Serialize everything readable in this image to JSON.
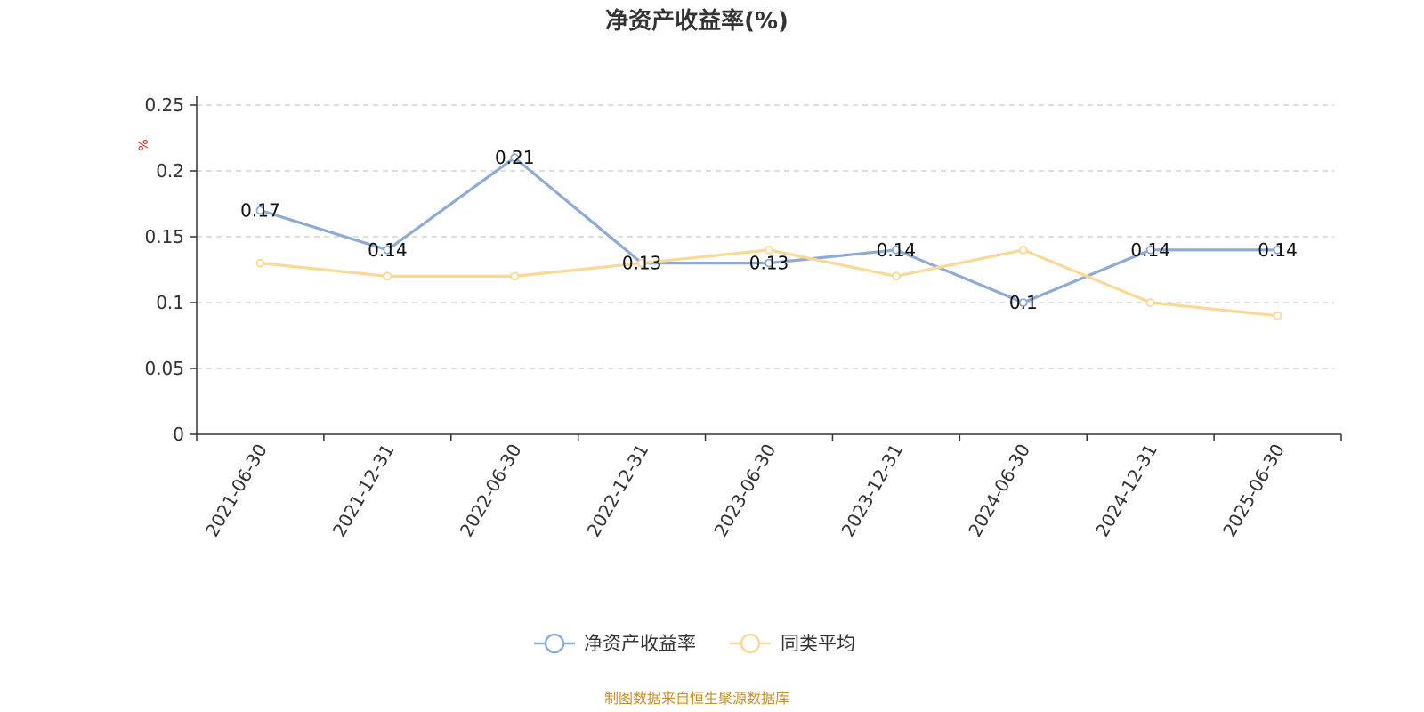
{
  "chart_data": {
    "type": "line",
    "title": "净资产收益率(%)",
    "unit_label": "%",
    "x": [
      "2021-06-30",
      "2021-12-31",
      "2022-06-30",
      "2022-12-31",
      "2023-06-30",
      "2023-12-31",
      "2024-06-30",
      "2024-12-31",
      "2025-06-30"
    ],
    "series": [
      {
        "name": "净资产收益率",
        "values": [
          0.17,
          0.14,
          0.21,
          0.13,
          0.13,
          0.14,
          0.1,
          0.14,
          0.14
        ],
        "color": "#8eabd6",
        "show_labels": true
      },
      {
        "name": "同类平均",
        "values": [
          0.13,
          0.12,
          0.12,
          0.13,
          0.14,
          0.12,
          0.14,
          0.1,
          0.09
        ],
        "color": "#fbd896",
        "show_labels": false
      }
    ],
    "y_ticks": [
      "0",
      "0.05",
      "0.1",
      "0.15",
      "0.2",
      "0.25"
    ],
    "ylim": [
      0,
      0.25
    ],
    "grid": true,
    "legend_position": "bottom-center"
  },
  "source": "制图数据来自恒生聚源数据库",
  "colors": {
    "unit": "#e02020",
    "source": "#c8902a",
    "grid": "#cccccc",
    "axis": "#333333"
  }
}
